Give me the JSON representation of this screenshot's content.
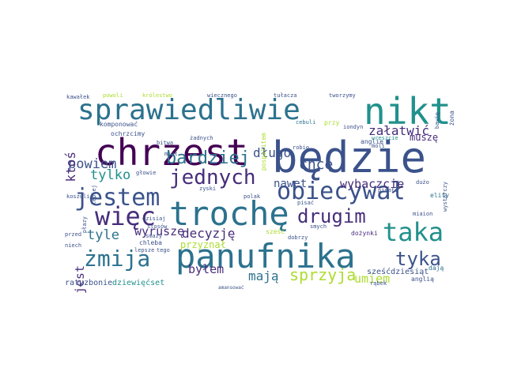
{
  "palette": {
    "purple": "#440154",
    "indigo": "#472d7b",
    "blue": "#3b528b",
    "steel": "#2c728e",
    "teal": "#21918c",
    "green": "#28ae80",
    "lime": "#5ec962",
    "yellow": "#addc30",
    "gold": "#fde725"
  },
  "words": [
    {
      "text": "będzie"
    },
    {
      "text": "chrzest"
    },
    {
      "text": "trochę"
    },
    {
      "text": "panufnika"
    },
    {
      "text": "sprawiedliwie"
    },
    {
      "text": "nikt"
    },
    {
      "text": "obiecywał"
    },
    {
      "text": "jestem"
    },
    {
      "text": "więc"
    },
    {
      "text": "taka"
    },
    {
      "text": "jednych"
    },
    {
      "text": "żmija"
    },
    {
      "text": "drugim"
    },
    {
      "text": "bardziej"
    },
    {
      "text": "tyka"
    },
    {
      "text": "długo"
    },
    {
      "text": "chcę"
    },
    {
      "text": "powiem"
    },
    {
      "text": "tylko"
    },
    {
      "text": "sprzyja"
    },
    {
      "text": "mają"
    },
    {
      "text": "byłem"
    },
    {
      "text": "decyzję"
    },
    {
      "text": "wyruszę"
    },
    {
      "text": "wybaczcie"
    },
    {
      "text": "załatwić"
    },
    {
      "text": "nawet"
    },
    {
      "text": "umiem"
    },
    {
      "text": "tyle"
    },
    {
      "text": "ktoś"
    },
    {
      "text": "jest"
    },
    {
      "text": "muszę"
    },
    {
      "text": "przyznał"
    },
    {
      "text": "ratyzbonie"
    },
    {
      "text": "dziewięćset"
    },
    {
      "text": "sześćdziesiąt"
    },
    {
      "text": "komponować"
    },
    {
      "text": "ochrzcimy"
    },
    {
      "text": "kawałek"
    },
    {
      "text": "powoli"
    },
    {
      "text": "królestwo"
    },
    {
      "text": "wiecznego"
    },
    {
      "text": "tułacza"
    },
    {
      "text": "tworzymy"
    },
    {
      "text": "anglię"
    },
    {
      "text": "anglią"
    },
    {
      "text": "dożynki"
    },
    {
      "text": "elity"
    },
    {
      "text": "dają"
    },
    {
      "text": "przed"
    },
    {
      "text": "niech"
    },
    {
      "text": "chleba"
    },
    {
      "text": "smaży"
    },
    {
      "text": "stosów"
    },
    {
      "text": "koszuli"
    },
    {
      "text": "dzisiaj"
    },
    {
      "text": "pisać"
    },
    {
      "text": "polak"
    },
    {
      "text": "smych"
    },
    {
      "text": "dobrzy"
    },
    {
      "text": "sześć"
    },
    {
      "text": "rąbek"
    },
    {
      "text": "iondyn"
    },
    {
      "text": "wreszcie"
    },
    {
      "text": "przy"
    },
    {
      "text": "cebuli"
    },
    {
      "text": "żona"
    },
    {
      "text": "bawię"
    },
    {
      "text": "bitwa"
    },
    {
      "text": "żadnych"
    },
    {
      "text": "głowie"
    },
    {
      "text": "miaion"
    },
    {
      "text": "dużo"
    },
    {
      "text": "lepsze"
    },
    {
      "text": "robię"
    },
    {
      "text": "moli"
    },
    {
      "text": "miał"
    },
    {
      "text": "tego"
    },
    {
      "text": "lepiej"
    },
    {
      "text": "płazy"
    },
    {
      "text": "wystarczy"
    },
    {
      "text": "zyski"
    },
    {
      "text": "amansować"
    },
    {
      "text": "pospolitem"
    },
    {
      "text": "pisało"
    }
  ]
}
